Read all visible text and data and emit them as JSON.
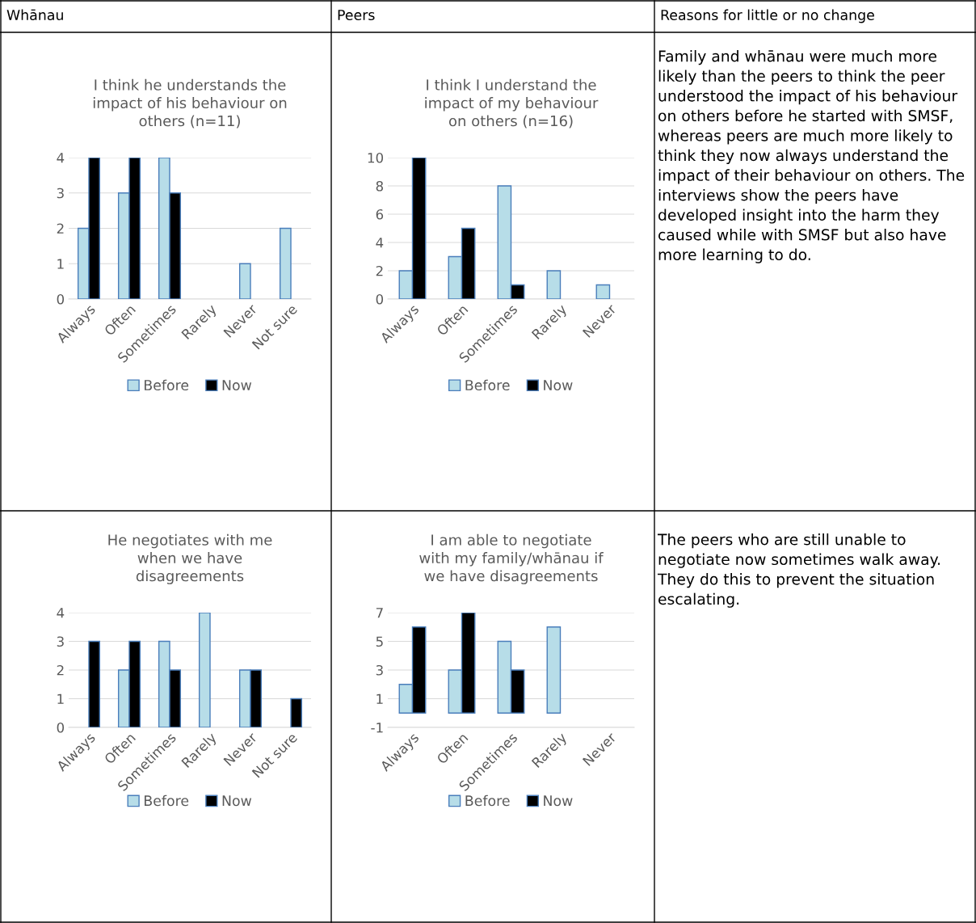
{
  "chart_data": [
    {
      "type": "other",
      "annotations": [
        "Whānau",
        "Peers",
        "Reasons for little or no change"
      ]
    },
    {
      "type": "bar",
      "title": "I think he understands the\nimpact of his behaviour on\nothers (n=11)",
      "categories": [
        "Always",
        "Often",
        "Sometimes",
        "Rarely",
        "Never",
        "Not sure"
      ],
      "series": [
        {
          "name": "Before",
          "color": "#b7dde8",
          "values": [
            2,
            3,
            4,
            null,
            1,
            2
          ]
        },
        {
          "name": "Now",
          "color": "#000000",
          "values": [
            4,
            4,
            3,
            null,
            null,
            null
          ]
        }
      ],
      "ylim": [
        0,
        4
      ],
      "yticks": [
        0,
        1,
        2,
        3,
        4
      ],
      "grid": "y",
      "legend": "bottom"
    },
    {
      "type": "bar",
      "title": "I think I understand the\nimpact of my behaviour\non others (n=16)",
      "categories": [
        "Always",
        "Often",
        "Sometimes",
        "Rarely",
        "Never"
      ],
      "series": [
        {
          "name": "Before",
          "color": "#b7dde8",
          "values": [
            2,
            3,
            8,
            2,
            1
          ]
        },
        {
          "name": "Now",
          "color": "#000000",
          "values": [
            10,
            5,
            1,
            null,
            null
          ]
        }
      ],
      "ylim": [
        0,
        10
      ],
      "yticks": [
        0,
        2,
        4,
        6,
        8,
        10
      ],
      "grid": "y",
      "legend": "bottom"
    },
    {
      "type": "other",
      "annotations": [
        "Family and whānau were much more likely than the peers to think the peer understood the impact of his behaviour on others before he started with SMSF, whereas peers are much more likely to think they now always understand the impact of their behaviour on others. The interviews show the peers have developed insight into the harm they caused while with SMSF but also have more learning to do."
      ]
    },
    {
      "type": "bar",
      "title": "He negotiates with me\nwhen we have\ndisagreements",
      "categories": [
        "Always",
        "Often",
        "Sometimes",
        "Rarely",
        "Never",
        "Not sure"
      ],
      "series": [
        {
          "name": "Before",
          "color": "#b7dde8",
          "values": [
            null,
            2,
            3,
            4,
            2,
            null
          ]
        },
        {
          "name": "Now",
          "color": "#000000",
          "values": [
            3,
            3,
            2,
            null,
            2,
            1
          ]
        }
      ],
      "ylim": [
        0,
        4
      ],
      "yticks": [
        0,
        1,
        2,
        3,
        4
      ],
      "grid": "y",
      "legend": "bottom"
    },
    {
      "type": "bar",
      "title": "I am able to negotiate\nwith my family/whānau if\nwe have disagreements",
      "categories": [
        "Always",
        "Often",
        "Sometimes",
        "Rarely",
        "Never"
      ],
      "series": [
        {
          "name": "Before",
          "color": "#b7dde8",
          "values": [
            2,
            3,
            5,
            6,
            null
          ]
        },
        {
          "name": "Now",
          "color": "#000000",
          "values": [
            6,
            7,
            3,
            null,
            null
          ]
        }
      ],
      "ylim": [
        -1,
        7
      ],
      "yticks": [
        -1,
        1,
        3,
        5,
        7
      ],
      "grid": "y",
      "legend": "bottom"
    },
    {
      "type": "other",
      "annotations": [
        "The peers who are still unable to negotiate now sometimes walk away. They do this to prevent the situation escalating."
      ]
    }
  ]
}
